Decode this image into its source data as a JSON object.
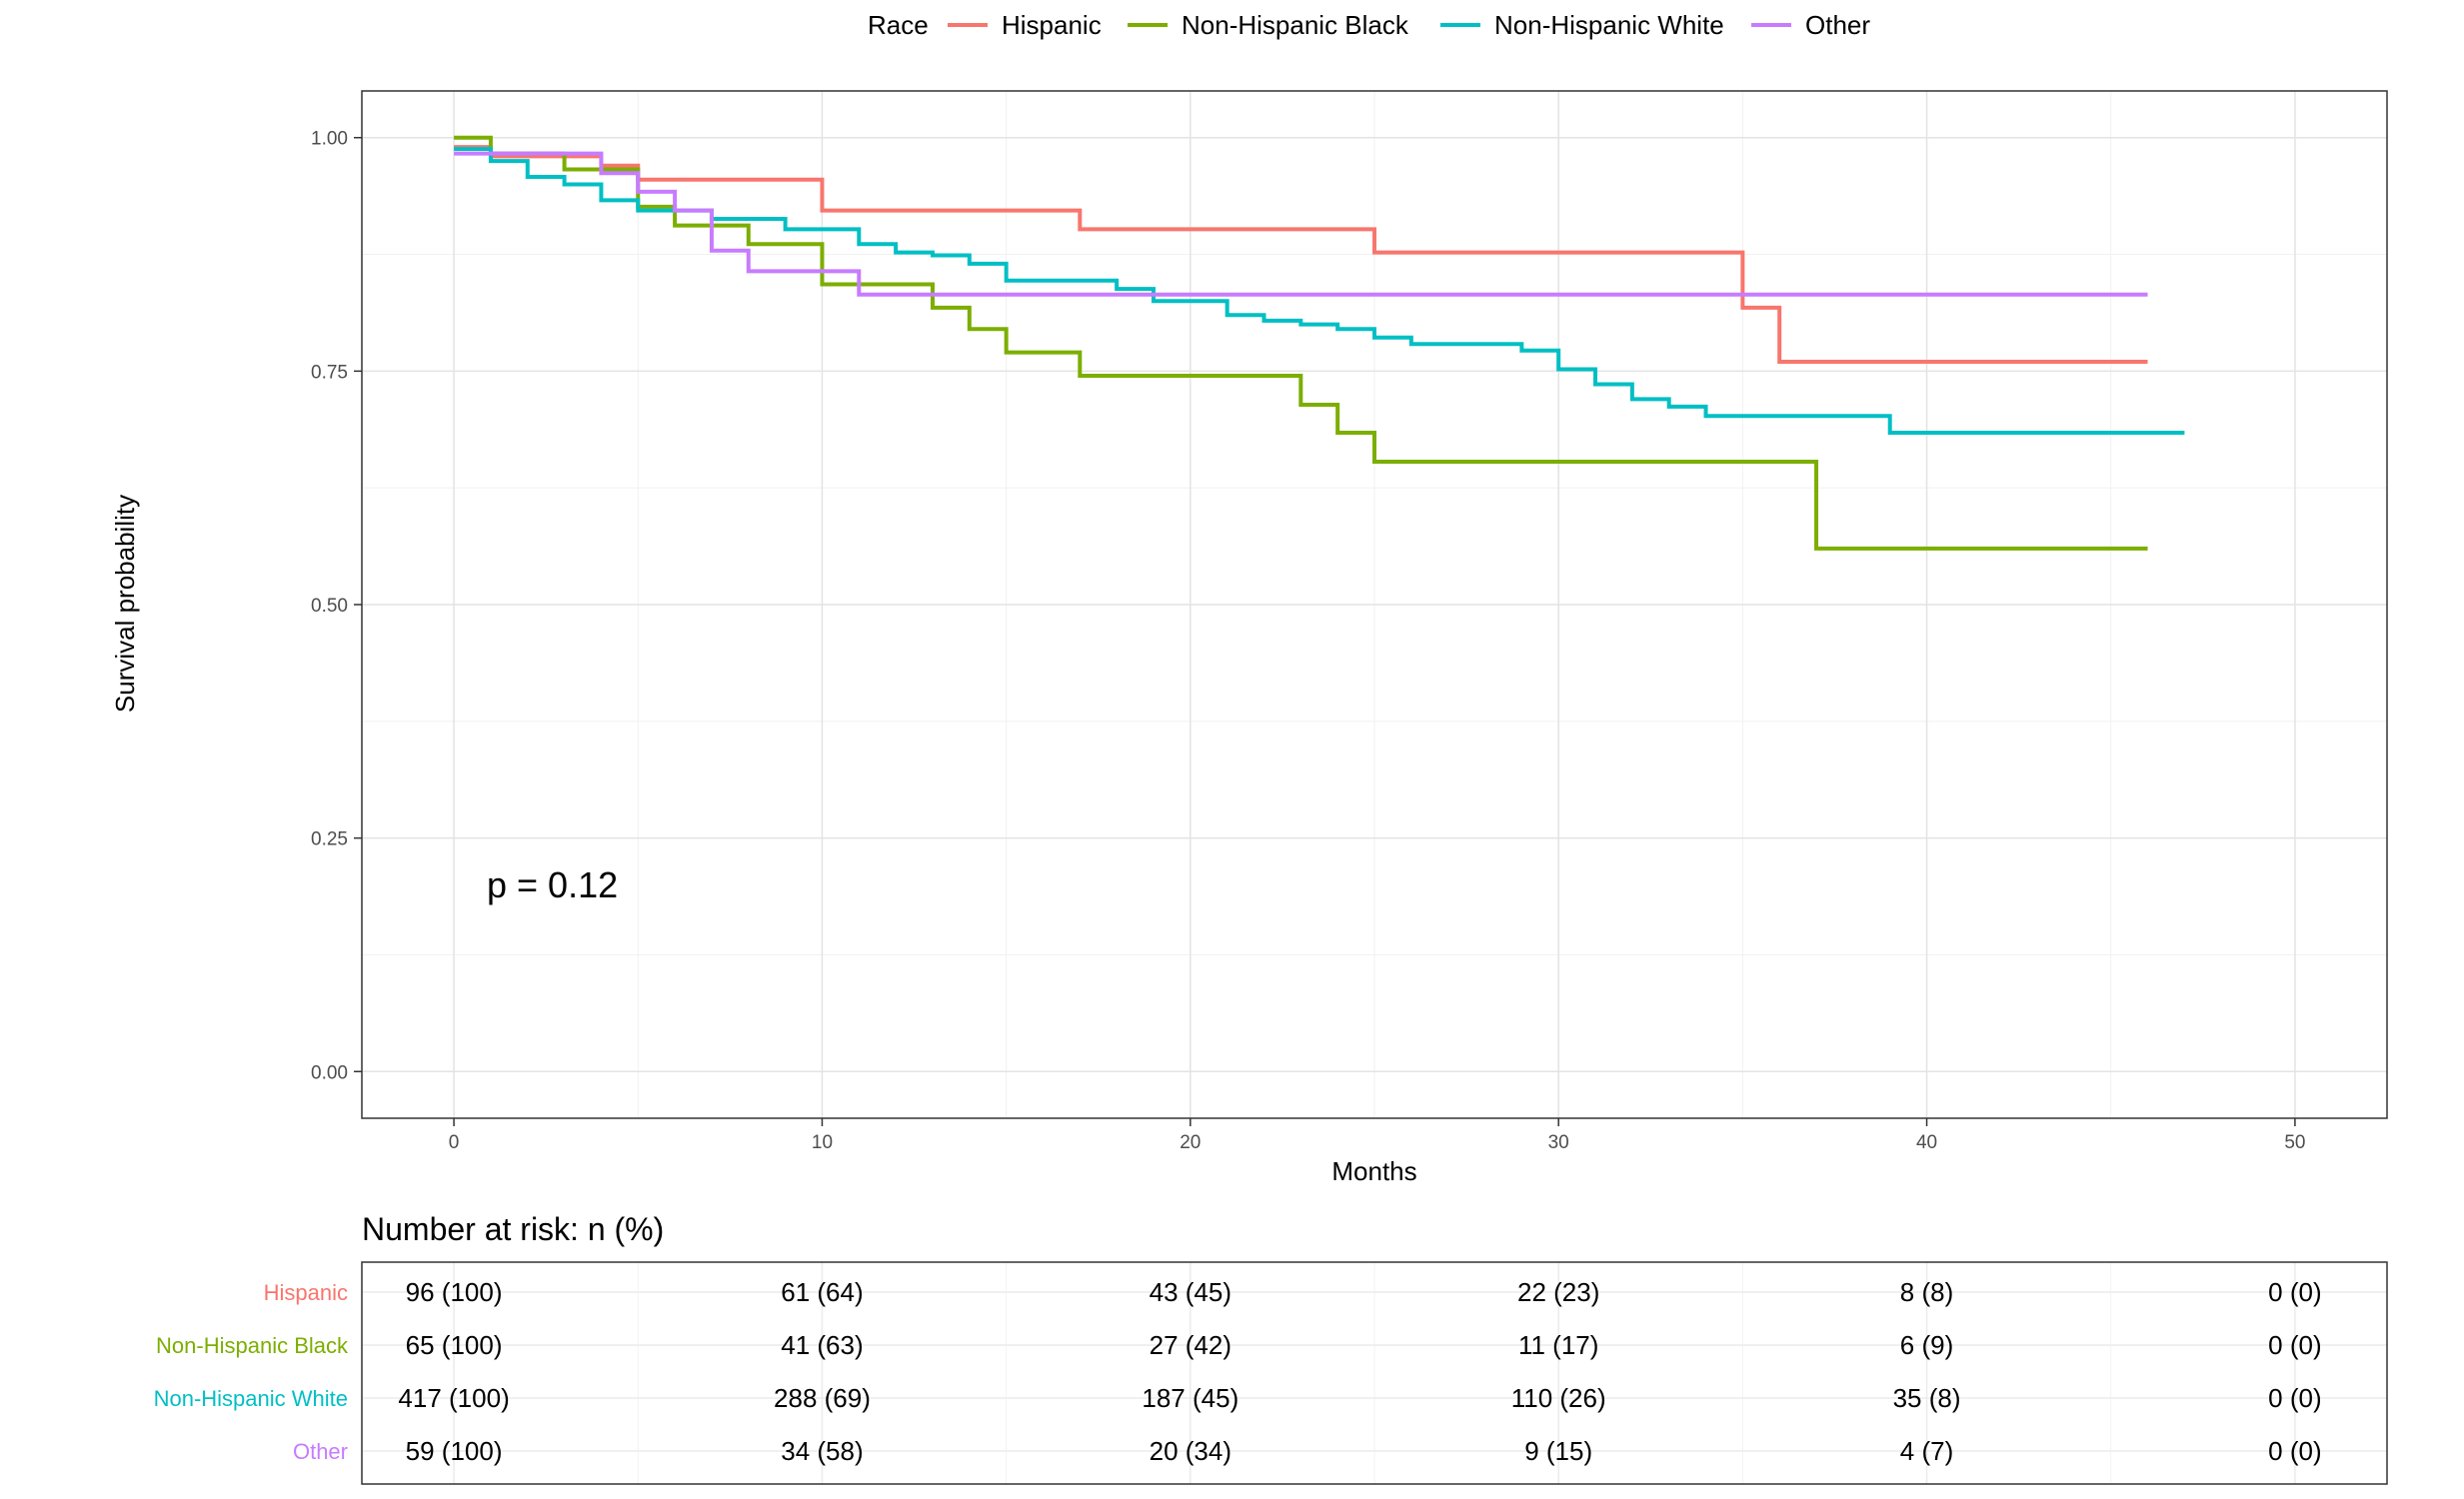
{
  "chart_data": {
    "type": "line",
    "xlabel": "Months",
    "ylabel": "Survival probability",
    "xlim": [
      -2.5,
      52.5
    ],
    "ylim": [
      -0.05,
      1.05
    ],
    "x_ticks": [
      "0",
      "10",
      "20",
      "30",
      "40",
      "50"
    ],
    "x_tick_values": [
      0,
      10,
      20,
      30,
      40,
      50
    ],
    "y_ticks": [
      "0.00",
      "0.25",
      "0.50",
      "0.75",
      "1.00"
    ],
    "y_tick_values": [
      0,
      0.25,
      0.5,
      0.75,
      1.0
    ],
    "grid": true,
    "legend_title": "Race",
    "legend_position": "top",
    "annotation": "p = 0.12",
    "series": [
      {
        "name": "Hispanic",
        "color": "#F8766D",
        "steps": [
          [
            0,
            0.99
          ],
          [
            1,
            0.98
          ],
          [
            4,
            0.97
          ],
          [
            5,
            0.955
          ],
          [
            10,
            0.922
          ],
          [
            17,
            0.902
          ],
          [
            25,
            0.877
          ],
          [
            35,
            0.818
          ],
          [
            36,
            0.76
          ],
          [
            46,
            0.76
          ]
        ]
      },
      {
        "name": "Non-Hispanic Black",
        "color": "#7CAE00",
        "steps": [
          [
            0,
            1.0
          ],
          [
            1,
            0.983
          ],
          [
            3,
            0.966
          ],
          [
            5,
            0.926
          ],
          [
            6,
            0.906
          ],
          [
            8,
            0.886
          ],
          [
            10,
            0.843
          ],
          [
            13,
            0.818
          ],
          [
            14,
            0.795
          ],
          [
            15,
            0.77
          ],
          [
            17,
            0.745
          ],
          [
            23,
            0.714
          ],
          [
            24,
            0.684
          ],
          [
            25,
            0.653
          ],
          [
            37,
            0.56
          ],
          [
            46,
            0.56
          ]
        ]
      },
      {
        "name": "Non-Hispanic White",
        "color": "#00BFC4",
        "steps": [
          [
            0,
            0.988
          ],
          [
            1,
            0.975
          ],
          [
            2,
            0.958
          ],
          [
            3,
            0.95
          ],
          [
            4,
            0.933
          ],
          [
            5,
            0.922
          ],
          [
            7,
            0.913
          ],
          [
            9,
            0.902
          ],
          [
            11,
            0.886
          ],
          [
            12,
            0.877
          ],
          [
            13,
            0.874
          ],
          [
            14,
            0.865
          ],
          [
            15,
            0.847
          ],
          [
            18,
            0.838
          ],
          [
            19,
            0.825
          ],
          [
            21,
            0.81
          ],
          [
            22,
            0.804
          ],
          [
            23,
            0.8
          ],
          [
            24,
            0.795
          ],
          [
            25,
            0.786
          ],
          [
            26,
            0.779
          ],
          [
            29,
            0.772
          ],
          [
            30,
            0.752
          ],
          [
            31,
            0.736
          ],
          [
            32,
            0.72
          ],
          [
            33,
            0.712
          ],
          [
            34,
            0.702
          ],
          [
            39,
            0.684
          ],
          [
            47,
            0.684
          ]
        ]
      },
      {
        "name": "Other",
        "color": "#C77CFF",
        "steps": [
          [
            0,
            0.983
          ],
          [
            4,
            0.962
          ],
          [
            5,
            0.942
          ],
          [
            6,
            0.922
          ],
          [
            7,
            0.879
          ],
          [
            8,
            0.857
          ],
          [
            11,
            0.832
          ],
          [
            46,
            0.832
          ]
        ]
      }
    ],
    "risk_table": {
      "title": "Number at risk: n (%)",
      "time_points": [
        0,
        10,
        20,
        30,
        40,
        50
      ],
      "rows": [
        {
          "name": "Hispanic",
          "color": "#F8766D",
          "values": [
            "96 (100)",
            "61 (64)",
            "43 (45)",
            "22 (23)",
            "8 (8)",
            "0 (0)"
          ]
        },
        {
          "name": "Non-Hispanic Black",
          "color": "#7CAE00",
          "values": [
            "65 (100)",
            "41 (63)",
            "27 (42)",
            "11 (17)",
            "6 (9)",
            "0 (0)"
          ]
        },
        {
          "name": "Non-Hispanic White",
          "color": "#00BFC4",
          "values": [
            "417 (100)",
            "288 (69)",
            "187 (45)",
            "110 (26)",
            "35 (8)",
            "0 (0)"
          ]
        },
        {
          "name": "Other",
          "color": "#C77CFF",
          "values": [
            "59 (100)",
            "34 (58)",
            "20 (34)",
            "9 (15)",
            "4 (7)",
            "0 (0)"
          ]
        }
      ]
    }
  }
}
